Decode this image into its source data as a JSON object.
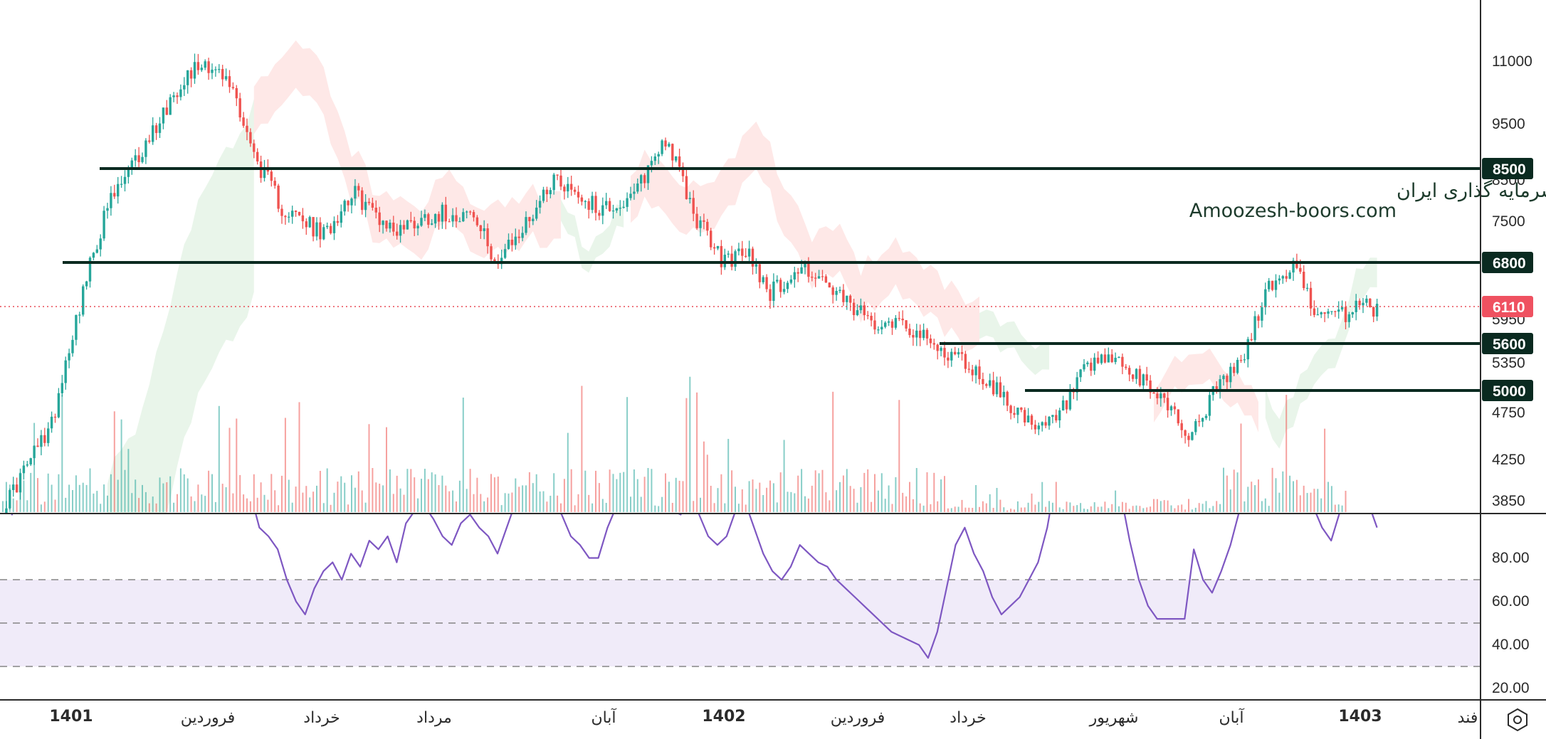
{
  "chart_data": {
    "type": "candlestick",
    "watermark": {
      "line1": "انجمن خبرگان سرمایه گذاری ایران",
      "line2": "Amoozesh-boors.com"
    },
    "price_axis": {
      "ticks": [
        11000,
        9500,
        8500,
        7500,
        6800,
        6110,
        5950,
        5600,
        5350,
        5000,
        4750,
        4250,
        3850
      ],
      "tick_labels": [
        "11000",
        "9500",
        "8500",
        "7500",
        "6800",
        "6110",
        "5950",
        "5600",
        "5350",
        "5000",
        "4750",
        "4250",
        "3850"
      ]
    },
    "rsi_axis": {
      "ticks": [
        20,
        40,
        60,
        80
      ],
      "tick_labels": [
        "20.00",
        "40.00",
        "60.00",
        "80.00"
      ],
      "band": [
        30,
        70
      ],
      "mid": 50
    },
    "time_axis": [
      {
        "label": "1401",
        "bold": true
      },
      {
        "label": "فروردین",
        "bold": false
      },
      {
        "label": "خرداد",
        "bold": false
      },
      {
        "label": "مرداد",
        "bold": false
      },
      {
        "label": "آبان",
        "bold": false
      },
      {
        "label": "1402",
        "bold": true
      },
      {
        "label": "فروردین",
        "bold": false
      },
      {
        "label": "خرداد",
        "bold": false
      },
      {
        "label": "شهریور",
        "bold": false
      },
      {
        "label": "آبان",
        "bold": false
      },
      {
        "label": "1403",
        "bold": true
      },
      {
        "label": "فند",
        "bold": false
      }
    ],
    "levels": [
      {
        "value": 8500,
        "label": "8500"
      },
      {
        "value": 6800,
        "label": "6800"
      },
      {
        "value": 5600,
        "label": "5600"
      },
      {
        "value": 5000,
        "label": "5000"
      }
    ],
    "last_price": {
      "value": 6110,
      "label": "6110"
    },
    "price_path": [
      [
        0,
        3850
      ],
      [
        14,
        4700
      ],
      [
        23,
        6400
      ],
      [
        30,
        7800
      ],
      [
        40,
        8900
      ],
      [
        52,
        10600
      ],
      [
        58,
        11000
      ],
      [
        66,
        10300
      ],
      [
        72,
        8800
      ],
      [
        80,
        7800
      ],
      [
        92,
        7300
      ],
      [
        100,
        8100
      ],
      [
        112,
        7400
      ],
      [
        124,
        7700
      ],
      [
        134,
        7700
      ],
      [
        142,
        6850
      ],
      [
        150,
        7500
      ],
      [
        158,
        8400
      ],
      [
        170,
        7800
      ],
      [
        180,
        7900
      ],
      [
        190,
        9200
      ],
      [
        198,
        7700
      ],
      [
        206,
        6900
      ],
      [
        214,
        7000
      ],
      [
        220,
        6400
      ],
      [
        230,
        6800
      ],
      [
        240,
        6300
      ],
      [
        248,
        6000
      ],
      [
        258,
        6000
      ],
      [
        266,
        5650
      ],
      [
        274,
        5500
      ],
      [
        282,
        5200
      ],
      [
        290,
        4900
      ],
      [
        296,
        4600
      ],
      [
        303,
        4800
      ],
      [
        310,
        5300
      ],
      [
        318,
        5500
      ],
      [
        326,
        5200
      ],
      [
        334,
        4950
      ],
      [
        340,
        4550
      ],
      [
        348,
        5100
      ],
      [
        356,
        5500
      ],
      [
        362,
        6400
      ],
      [
        370,
        6800
      ],
      [
        378,
        6000
      ],
      [
        386,
        6100
      ],
      [
        390,
        6300
      ],
      [
        394,
        6110
      ]
    ],
    "rsi": [
      60,
      55,
      64,
      70,
      75,
      80,
      82,
      88,
      93,
      92,
      85,
      84,
      87,
      75,
      66,
      64,
      72,
      69,
      65,
      71,
      70,
      78,
      76,
      72,
      65,
      66,
      62,
      60,
      52,
      50,
      47,
      40,
      35,
      32,
      38,
      42,
      44,
      40,
      46,
      43,
      49,
      47,
      50,
      44,
      53,
      56,
      57,
      54,
      50,
      48,
      53,
      55,
      52,
      50,
      46,
      52,
      58,
      62,
      65,
      60,
      58,
      55,
      50,
      48,
      45,
      45,
      52,
      57,
      66,
      70,
      65,
      60,
      58,
      56,
      55,
      62,
      55,
      50,
      48,
      50,
      56,
      58,
      52,
      46,
      42,
      40,
      43,
      48,
      46,
      44,
      43,
      40,
      38,
      36,
      34,
      32,
      30,
      28,
      27,
      26,
      25,
      22,
      28,
      38,
      48,
      52,
      46,
      42,
      36,
      32,
      34,
      36,
      40,
      44,
      52,
      64,
      70,
      66,
      61,
      60,
      60,
      60,
      60,
      49,
      40,
      34,
      31,
      31,
      31,
      31,
      47,
      40,
      37,
      42,
      48,
      56,
      68,
      76,
      80,
      78,
      74,
      70,
      62,
      57,
      52,
      49,
      56,
      60,
      64,
      58,
      52
    ],
    "volume_scale": "relative"
  }
}
